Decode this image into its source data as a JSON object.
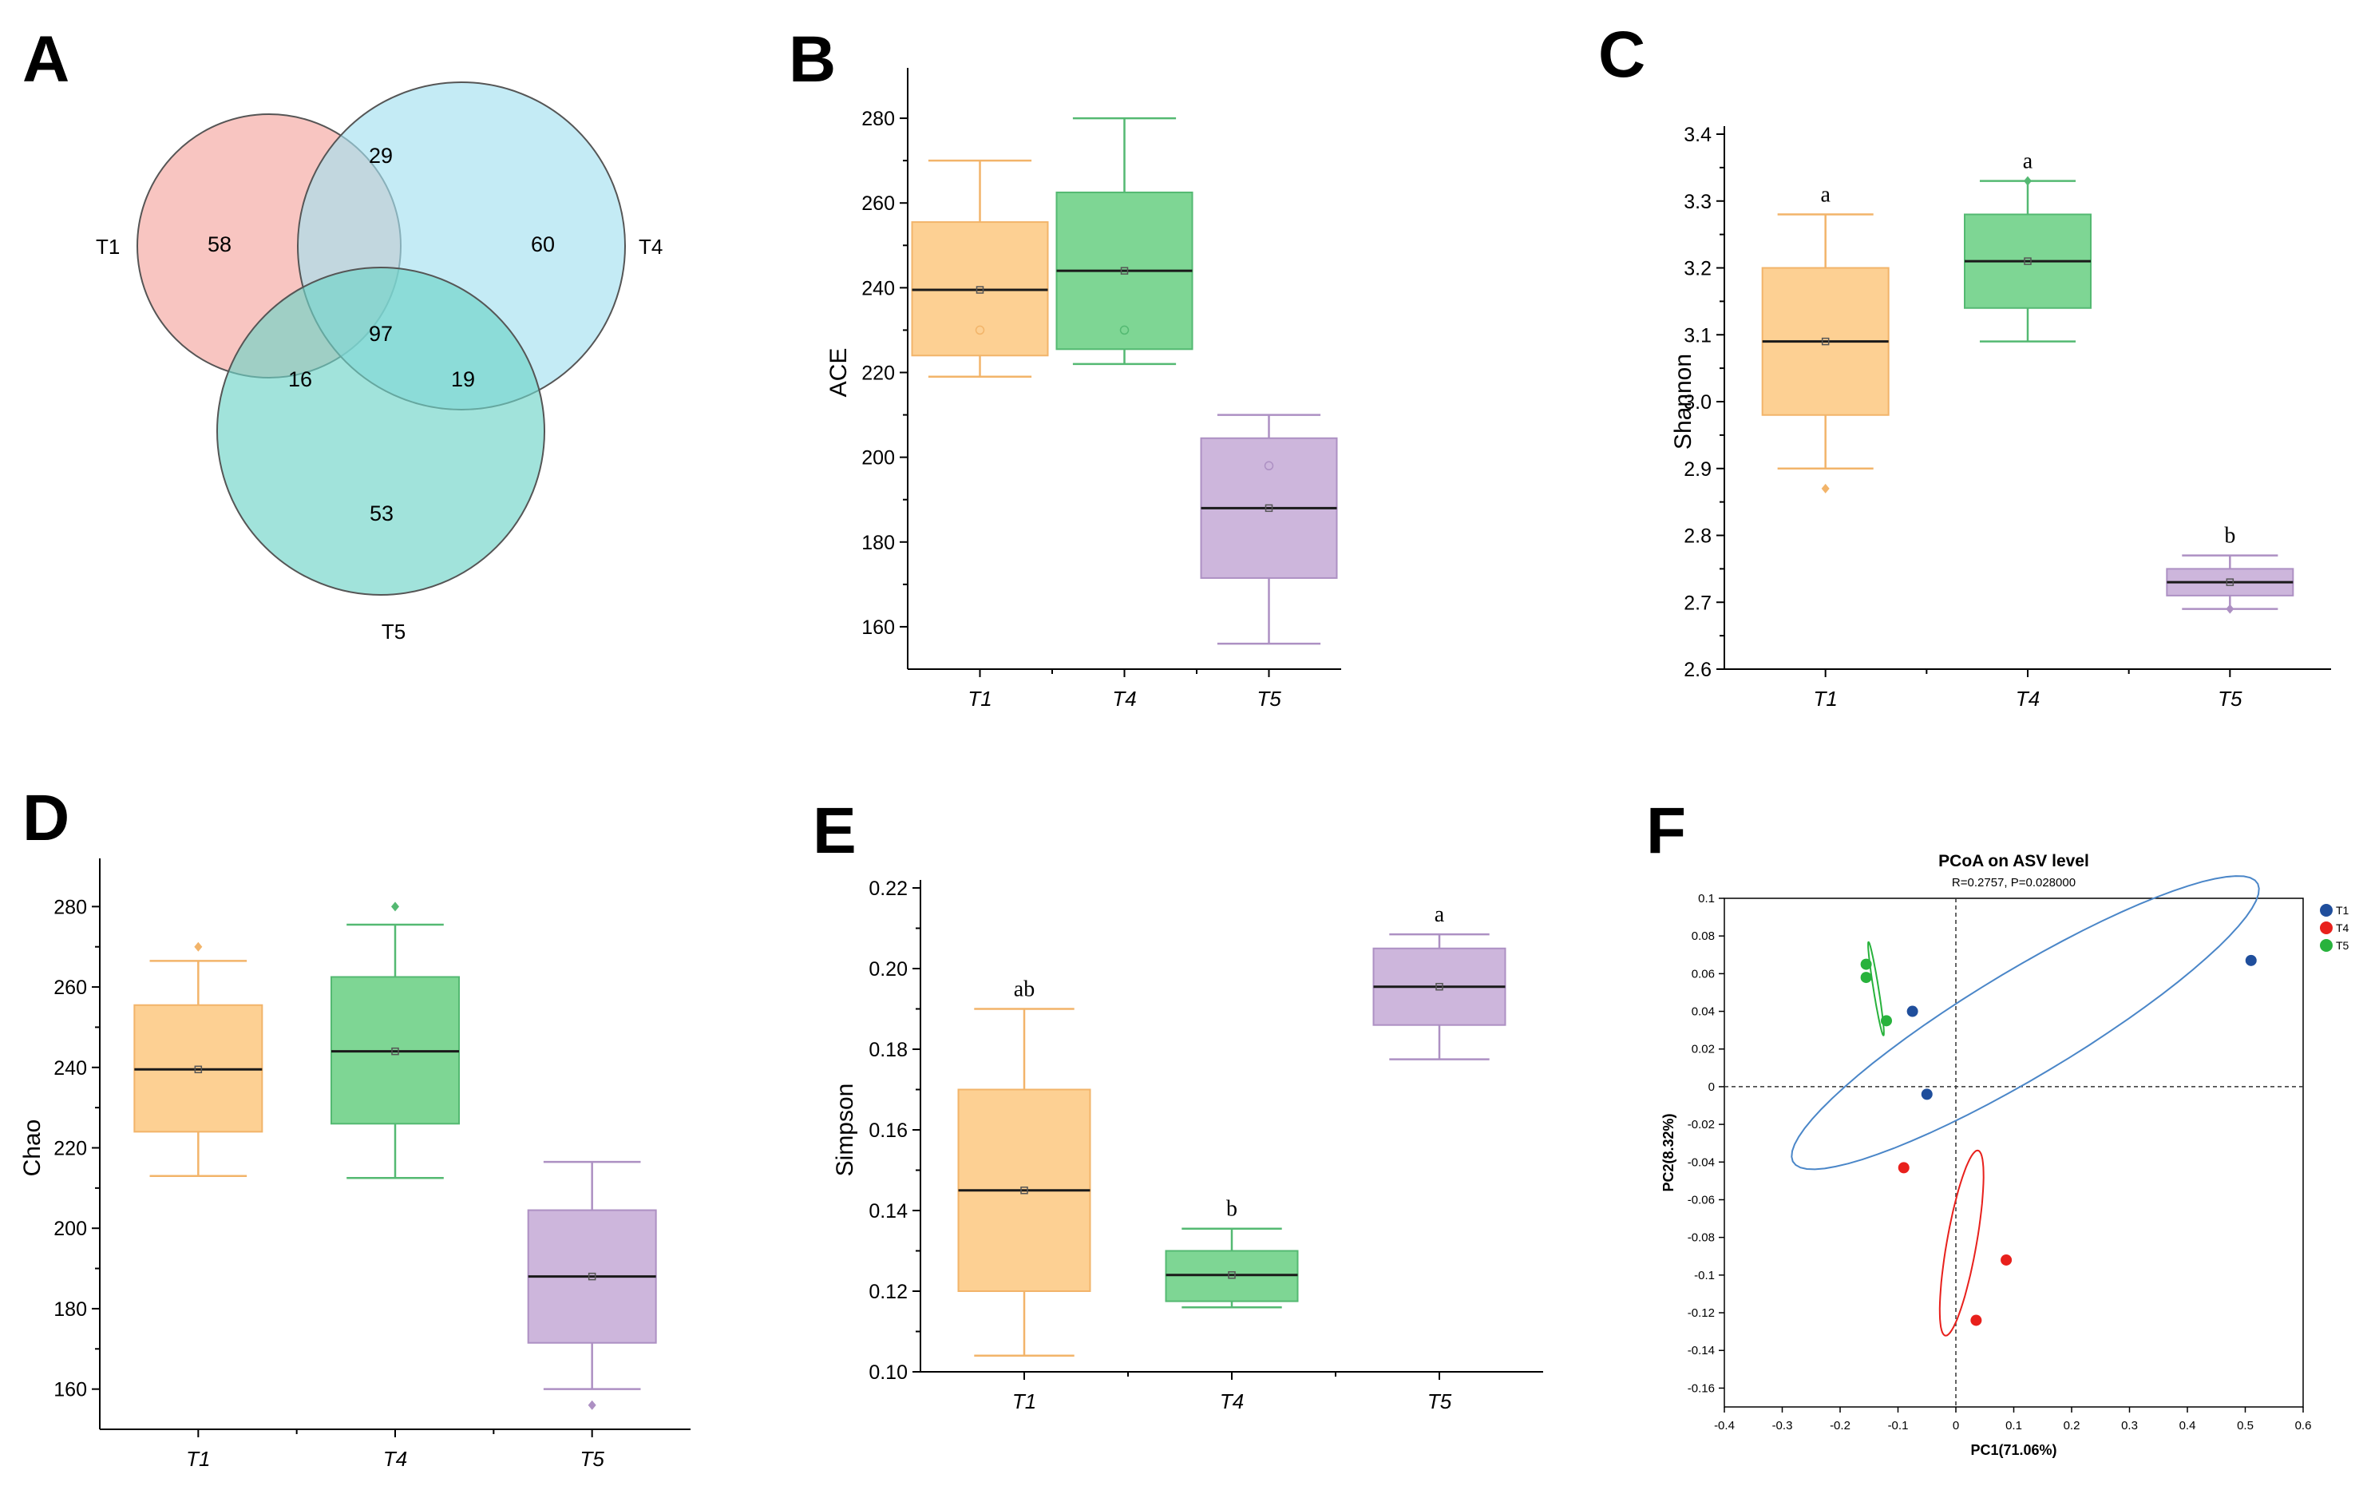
{
  "chart_data": [
    {
      "panel": "A",
      "type": "venn",
      "sets": [
        "T1",
        "T4",
        "T5"
      ],
      "regions": {
        "T1_only": 58,
        "T4_only": 60,
        "T5_only": 53,
        "T1_T4": 29,
        "T1_T5": 16,
        "T4_T5": 19,
        "T1_T4_T5": 97
      },
      "colors": {
        "T1": "#f4a6a0",
        "T4": "#a4e0ef",
        "T5": "#6fd4c7"
      }
    },
    {
      "panel": "B",
      "type": "box",
      "ylabel": "ACE",
      "ylim": [
        150,
        290
      ],
      "yticks": [
        160,
        180,
        200,
        220,
        240,
        260,
        280
      ],
      "categories": [
        "T1",
        "T4",
        "T5"
      ],
      "boxes": [
        {
          "name": "T1",
          "min": 219,
          "q1": 224,
          "median": 239.5,
          "q3": 255.5,
          "max": 270,
          "mean": 239.5,
          "points": [
            230
          ],
          "outliers": [],
          "color": "#fdd093",
          "edge": "#f2b46a"
        },
        {
          "name": "T4",
          "min": 222,
          "q1": 225.5,
          "median": 244,
          "q3": 262.5,
          "max": 280,
          "mean": 244,
          "points": [
            230
          ],
          "outliers": [],
          "color": "#7ed694",
          "edge": "#54b972"
        },
        {
          "name": "T5",
          "min": 156,
          "q1": 171.5,
          "median": 188,
          "q3": 204.5,
          "max": 210,
          "mean": 188,
          "points": [
            198
          ],
          "outliers": [],
          "color": "#cdb6dc",
          "edge": "#ad90c3"
        }
      ],
      "letters": []
    },
    {
      "panel": "C",
      "type": "box",
      "ylabel": "Shannon",
      "ylim": [
        2.6,
        3.4
      ],
      "yticks": [
        "2.6",
        "2.7",
        "2.8",
        "2.9",
        "3.0",
        "3.1",
        "3.2",
        "3.3",
        "3.4"
      ],
      "categories": [
        "T1",
        "T4",
        "T5"
      ],
      "boxes": [
        {
          "name": "T1",
          "min": 2.9,
          "q1": 2.98,
          "median": 3.09,
          "q3": 3.2,
          "max": 3.28,
          "mean": 3.09,
          "points": [],
          "outliers": [
            2.87
          ],
          "color": "#fdd093",
          "edge": "#f2b46a"
        },
        {
          "name": "T4",
          "min": 3.09,
          "q1": 3.14,
          "median": 3.21,
          "q3": 3.28,
          "max": 3.33,
          "mean": 3.21,
          "points": [],
          "outliers": [
            3.33
          ],
          "color": "#7ed694",
          "edge": "#54b972"
        },
        {
          "name": "T5",
          "min": 2.69,
          "q1": 2.71,
          "median": 2.73,
          "q3": 2.75,
          "max": 2.77,
          "mean": 2.73,
          "points": [],
          "outliers": [
            2.69
          ],
          "color": "#cdb6dc",
          "edge": "#ad90c3"
        }
      ],
      "letters": [
        "a",
        "a",
        "b"
      ]
    },
    {
      "panel": "D",
      "type": "box",
      "ylabel": "Chao",
      "ylim": [
        150,
        290
      ],
      "yticks": [
        160,
        180,
        200,
        220,
        240,
        260,
        280
      ],
      "categories": [
        "T1",
        "T4",
        "T5"
      ],
      "boxes": [
        {
          "name": "T1",
          "min": 213,
          "q1": 224,
          "median": 239.5,
          "q3": 255.5,
          "max": 266.5,
          "mean": 239.5,
          "points": [],
          "outliers": [
            270
          ],
          "color": "#fdd093",
          "edge": "#f2b46a"
        },
        {
          "name": "T4",
          "min": 212.5,
          "q1": 226,
          "median": 244,
          "q3": 262.5,
          "max": 275.5,
          "mean": 244,
          "points": [],
          "outliers": [
            280
          ],
          "color": "#7ed694",
          "edge": "#54b972"
        },
        {
          "name": "T5",
          "min": 160,
          "q1": 171.5,
          "median": 188,
          "q3": 204.5,
          "max": 216.5,
          "mean": 188,
          "points": [],
          "outliers": [
            156
          ],
          "color": "#cdb6dc",
          "edge": "#ad90c3"
        }
      ],
      "letters": []
    },
    {
      "panel": "E",
      "type": "box",
      "ylabel": "Simpson",
      "ylim": [
        0.1,
        0.22
      ],
      "yticks": [
        "0.10",
        "0.12",
        "0.14",
        "0.16",
        "0.18",
        "0.20",
        "0.22"
      ],
      "categories": [
        "T1",
        "T4",
        "T5"
      ],
      "boxes": [
        {
          "name": "T1",
          "min": 0.104,
          "q1": 0.12,
          "median": 0.145,
          "q3": 0.17,
          "max": 0.19,
          "mean": 0.145,
          "points": [],
          "outliers": [],
          "color": "#fdd093",
          "edge": "#f2b46a"
        },
        {
          "name": "T4",
          "min": 0.116,
          "q1": 0.1175,
          "median": 0.124,
          "q3": 0.13,
          "max": 0.1355,
          "mean": 0.124,
          "points": [],
          "outliers": [],
          "color": "#7ed694",
          "edge": "#54b972"
        },
        {
          "name": "T5",
          "min": 0.1775,
          "q1": 0.186,
          "median": 0.1955,
          "q3": 0.205,
          "max": 0.2085,
          "mean": 0.1955,
          "points": [],
          "outliers": [],
          "color": "#cdb6dc",
          "edge": "#ad90c3"
        }
      ],
      "letters": [
        "ab",
        "b",
        "a"
      ]
    },
    {
      "panel": "F",
      "type": "scatter",
      "title": "PCoA on ASV level",
      "subtitle": "R=0.2757, P=0.028000",
      "xlabel": "PC1(71.06%)",
      "ylabel": "PC2(8.32%)",
      "xlim": [
        -0.4,
        0.6
      ],
      "ylim": [
        -0.17,
        0.1
      ],
      "xticks": [
        "-0.4",
        "-0.3",
        "-0.2",
        "-0.1",
        "0",
        "0.1",
        "0.2",
        "0.3",
        "0.4",
        "0.5",
        "0.6"
      ],
      "yticks": [
        "-0.16",
        "-0.14",
        "-0.12",
        "-0.1",
        "-0.08",
        "-0.06",
        "-0.04",
        "-0.02",
        "0",
        "0.02",
        "0.04",
        "0.06",
        "0.08",
        "0.1"
      ],
      "series": [
        {
          "name": "T1",
          "color": "#1f4e9c",
          "ellipse_color": "#4a86c8",
          "x": [
            -0.075,
            -0.05,
            0.51
          ],
          "y": [
            0.04,
            -0.004,
            0.067
          ],
          "ellipse": {
            "cx": 0.12,
            "cy": 0.034,
            "rx": 0.41,
            "ry": 0.032,
            "angle": 10
          }
        },
        {
          "name": "T4",
          "color": "#e8201c",
          "ellipse_color": "#e8201c",
          "x": [
            -0.09,
            0.035,
            0.087
          ],
          "y": [
            -0.043,
            -0.124,
            -0.092
          ],
          "ellipse": {
            "cx": 0.01,
            "cy": -0.083,
            "rx": 0.058,
            "ry": 0.022,
            "angle": 55
          }
        },
        {
          "name": "T5",
          "color": "#28b23c",
          "ellipse_color": "#28b23c",
          "x": [
            -0.155,
            -0.155,
            -0.12
          ],
          "y": [
            0.065,
            0.058,
            0.035
          ],
          "ellipse": {
            "cx": -0.138,
            "cy": 0.052,
            "rx": 0.028,
            "ry": 0.004,
            "angle": -62
          }
        }
      ]
    }
  ]
}
